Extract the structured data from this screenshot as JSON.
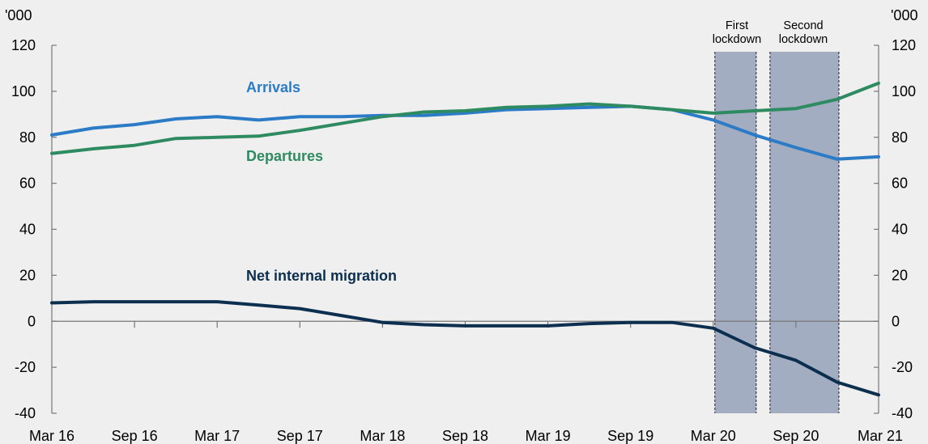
{
  "chart_data": {
    "type": "line",
    "title": "",
    "xlabel": "",
    "ylabel": "",
    "y_unit_left": "'000",
    "y_unit_right": "'000",
    "ylim": [
      -40,
      120
    ],
    "yticks": [
      120,
      100,
      80,
      60,
      40,
      20,
      0,
      -20,
      -40
    ],
    "grid": false,
    "x_tick_labels": [
      "Mar 16",
      "Sep 16",
      "Mar 17",
      "Sep 17",
      "Mar 18",
      "Sep 18",
      "Mar 19",
      "Sep 19",
      "Mar 20",
      "Sep 20",
      "Mar 21"
    ],
    "x": [
      "Mar 16",
      "Jun 16",
      "Sep 16",
      "Dec 16",
      "Mar 17",
      "Jun 17",
      "Sep 17",
      "Dec 17",
      "Mar 18",
      "Jun 18",
      "Sep 18",
      "Dec 18",
      "Mar 19",
      "Jun 19",
      "Sep 19",
      "Dec 19",
      "Mar 20",
      "Jun 20",
      "Sep 20",
      "Dec 20",
      "Mar 21"
    ],
    "series": [
      {
        "name": "Arrivals",
        "color": "#2b7bc6",
        "values": [
          81,
          84,
          85.5,
          88,
          89,
          87.5,
          89,
          89,
          89.5,
          89.5,
          90.5,
          92,
          92.5,
          93,
          93.5,
          92,
          87.5,
          81,
          75.5,
          70.5,
          71.5
        ]
      },
      {
        "name": "Departures",
        "color": "#2e8b61",
        "values": [
          73,
          75,
          76.5,
          79.5,
          80,
          80.5,
          83,
          86,
          89,
          91,
          91.5,
          93,
          93.5,
          94.5,
          93.5,
          92,
          90.5,
          91.5,
          92.5,
          96.5,
          103.5
        ]
      },
      {
        "name": "Net internal migration",
        "color": "#0d2f4f",
        "values": [
          8,
          8.5,
          8.5,
          8.5,
          8.5,
          7,
          5.5,
          2.5,
          -0.5,
          -1.5,
          -2,
          -2,
          -2,
          -1,
          -0.5,
          -0.5,
          -3,
          -11.5,
          -17,
          -26.5,
          -32
        ]
      }
    ],
    "shaded_periods": [
      {
        "label_line1": "First",
        "label_line2": "lockdown",
        "start": "Mar 20",
        "end": "Jun 20"
      },
      {
        "label_line1": "Second",
        "label_line2": "lockdown",
        "start": "Jul 20",
        "end": "Dec 20"
      }
    ],
    "band_color": "#a3adc2"
  }
}
